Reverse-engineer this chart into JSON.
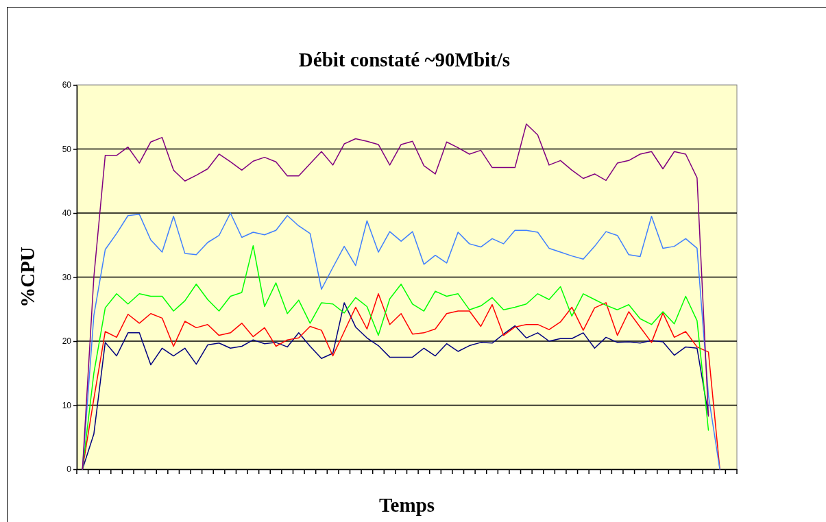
{
  "chart_data": {
    "type": "line",
    "title": "Débit constaté ~90Mbit/s",
    "xlabel": "Temps",
    "ylabel": "%CPU",
    "categories": [
      null,
      null,
      null,
      null,
      null,
      null,
      null,
      null,
      null,
      null,
      null,
      null,
      null,
      null,
      null,
      null,
      null,
      null,
      null,
      null,
      null,
      null,
      null,
      null,
      null,
      null,
      null,
      null,
      null,
      null,
      null,
      null,
      null,
      null,
      null,
      null,
      null,
      null,
      null,
      null,
      null,
      null,
      null,
      null,
      null,
      null,
      null,
      null,
      null,
      null,
      null,
      null,
      null,
      null,
      null,
      null,
      null,
      null
    ],
    "ylim": [
      0,
      60
    ],
    "yticks": [
      0,
      10,
      20,
      30,
      40,
      50,
      60
    ],
    "grid": "y",
    "marker": "none",
    "line_style": "solid",
    "series": [
      {
        "color": "#000080",
        "values": [
          0,
          5.5,
          19.8,
          17.7,
          21.3,
          21.3,
          16.3,
          18.9,
          17.7,
          18.9,
          16.4,
          19.4,
          19.7,
          18.9,
          19.2,
          20.2,
          19.6,
          19.8,
          19.1,
          21.3,
          19.2,
          17.3,
          18.1,
          26.0,
          22.2,
          20.5,
          19.3,
          17.5,
          17.5,
          17.5,
          18.9,
          17.7,
          19.6,
          18.4,
          19.3,
          19.8,
          19.7,
          21.1,
          22.4,
          20.5,
          21.3,
          20.0,
          20.4,
          20.4,
          21.3,
          18.9,
          20.6,
          19.8,
          19.9,
          19.7,
          20.1,
          19.9,
          17.8,
          19.1,
          18.9,
          8.5,
          null,
          null
        ]
      },
      {
        "color": "#ff0000",
        "values": [
          0,
          11,
          21.5,
          20.6,
          24.2,
          22.8,
          24.3,
          23.6,
          19.2,
          23.1,
          22.1,
          22.6,
          20.9,
          21.3,
          22.8,
          20.7,
          22.1,
          19.2,
          20.2,
          20.5,
          22.3,
          21.7,
          17.7,
          21.5,
          25.3,
          21.9,
          27.4,
          22.6,
          24.3,
          21.1,
          21.3,
          21.9,
          24.3,
          24.7,
          24.7,
          22.3,
          25.7,
          20.9,
          22.2,
          22.6,
          22.6,
          21.8,
          23.0,
          25.3,
          21.7,
          25.2,
          26.0,
          20.9,
          24.6,
          22.2,
          19.8,
          24.4,
          20.6,
          21.5,
          19.1,
          18.3,
          0,
          null
        ]
      },
      {
        "color": "#00ff00",
        "values": [
          0,
          15,
          25.2,
          27.4,
          25.8,
          27.4,
          27.0,
          27.0,
          24.7,
          26.3,
          28.9,
          26.5,
          24.7,
          27.0,
          27.6,
          34.9,
          25.4,
          29.1,
          24.3,
          26.4,
          22.8,
          26.0,
          25.8,
          24.4,
          26.8,
          25.4,
          20.9,
          26.6,
          28.9,
          25.8,
          24.7,
          27.8,
          27.0,
          27.4,
          24.9,
          25.5,
          26.8,
          24.9,
          25.3,
          25.8,
          27.4,
          26.5,
          28.5,
          23.9,
          27.4,
          26.5,
          25.6,
          24.9,
          25.7,
          23.5,
          22.6,
          24.6,
          22.7,
          27.0,
          23.2,
          6.1,
          null,
          null
        ]
      },
      {
        "color": "#3f7fff",
        "values": [
          0,
          24,
          34.3,
          36.8,
          39.6,
          39.8,
          35.8,
          33.9,
          39.5,
          33.7,
          33.5,
          35.4,
          36.5,
          40.0,
          36.2,
          37.0,
          36.6,
          37.3,
          39.6,
          38.0,
          36.8,
          28.1,
          31.5,
          34.8,
          31.8,
          38.8,
          33.9,
          37.1,
          35.6,
          37.1,
          32.0,
          33.4,
          32.2,
          37.0,
          35.2,
          34.7,
          36.0,
          35.2,
          37.3,
          37.3,
          37.0,
          34.5,
          33.9,
          33.3,
          32.8,
          34.8,
          37.1,
          36.5,
          33.5,
          33.2,
          39.5,
          34.5,
          34.8,
          36.0,
          34.5,
          11.5,
          0,
          null
        ]
      },
      {
        "color": "#800080",
        "values": [
          0,
          30,
          49.0,
          49.0,
          50.3,
          47.8,
          51.1,
          51.8,
          46.7,
          45.0,
          45.9,
          46.9,
          49.2,
          48.0,
          46.7,
          48.1,
          48.7,
          48.0,
          45.8,
          45.8,
          47.7,
          49.6,
          47.5,
          50.8,
          51.6,
          51.2,
          50.7,
          47.5,
          50.7,
          51.2,
          47.4,
          46.1,
          51.1,
          50.2,
          49.2,
          49.8,
          47.1,
          47.1,
          47.1,
          53.9,
          52.2,
          47.5,
          48.2,
          46.7,
          45.4,
          46.1,
          45.1,
          47.8,
          48.2,
          49.2,
          49.6,
          46.9,
          49.6,
          49.2,
          45.5,
          8.3,
          null,
          null
        ]
      }
    ]
  }
}
